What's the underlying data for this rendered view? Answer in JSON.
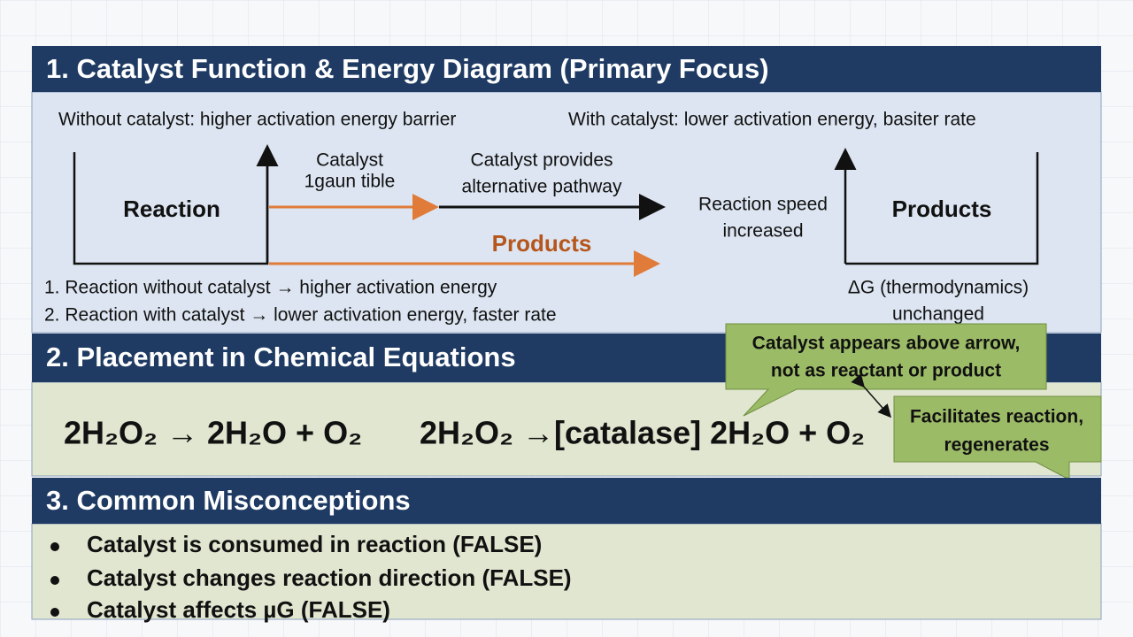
{
  "section_1": {
    "title": "1.  Catalyst Function & Energy Diagram (Primary Focus)",
    "without_catalyst": "Without catalyst: higher activation energy barrier",
    "with_catalyst": "With catalyst:  lower activation energy, basiter rate",
    "reaction_box": "Reaction",
    "catalyst_label": [
      "Catalyst",
      "1gaun tible"
    ],
    "pathway_label": [
      "Catalyst provides",
      "alternative pathway"
    ],
    "products_arrow_label": "Products",
    "speed_label": [
      "Reaction speed",
      "increased"
    ],
    "products_box": "Products",
    "notes": [
      "1.  Reaction without catalyst → higher activation energy",
      "2.  Reaction with catalyst → lower activation energy, faster rate"
    ],
    "delta_g": [
      "ΔG (thermodynamics)",
      "unchanged"
    ]
  },
  "section_2": {
    "title": "2.  Placement in Chemical Equations",
    "equations": [
      "2H₂O₂ → 2H₂O + O₂",
      "2H₂O₂ →[catalase] 2H₂O + O₂"
    ],
    "callouts": [
      [
        "Catalyst appears above arrow,",
        "not as reactant or product"
      ],
      [
        "Facilitates reaction,",
        "regenerates"
      ]
    ]
  },
  "section_3": {
    "title": "3.  Common Misconceptions",
    "items": [
      "Catalyst is consumed in reaction (FALSE)",
      "Catalyst changes reaction direction (FALSE)",
      "Catalyst affects µG (FALSE)"
    ]
  }
}
